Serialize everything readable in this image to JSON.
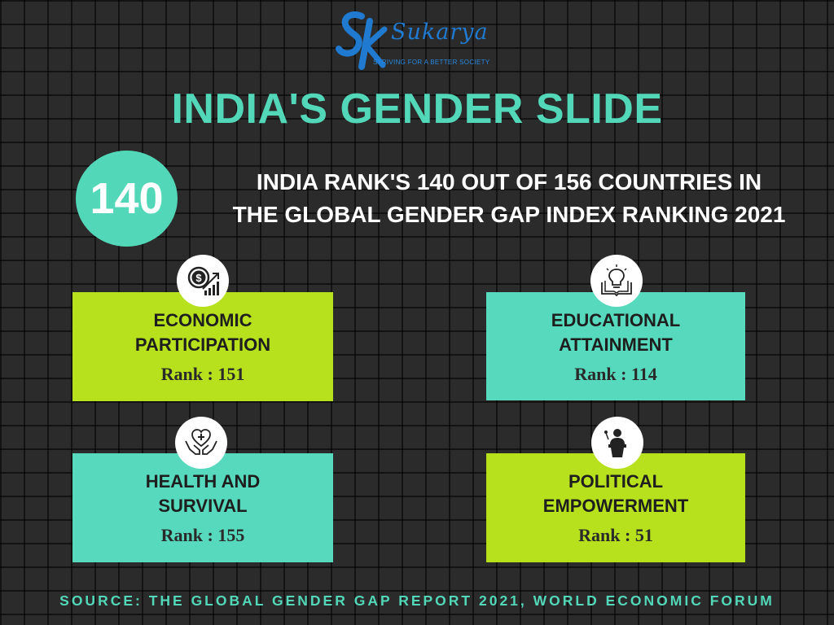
{
  "brand": {
    "name": "Sukarya",
    "tagline": "STRIVING FOR A BETTER SOCIETY",
    "monogram": "SK"
  },
  "title": "INDIA'S GENDER SLIDE",
  "overall_rank": "140",
  "headline": {
    "line1": "INDIA RANK'S 140 OUT OF 156 COUNTRIES IN",
    "line2": "THE GLOBAL GENDER GAP INDEX RANKING 2021"
  },
  "categories": [
    {
      "line1": "ECONOMIC",
      "line2": "PARTICIPATION",
      "rank_text": "Rank : 151",
      "icon": "dollar-growth-icon"
    },
    {
      "line1": "EDUCATIONAL",
      "line2": "ATTAINMENT",
      "rank_text": "Rank : 114",
      "icon": "book-bulb-icon"
    },
    {
      "line1": "HEALTH AND",
      "line2": "SURVIVAL",
      "rank_text": "Rank : 155",
      "icon": "heart-hands-icon"
    },
    {
      "line1": "POLITICAL",
      "line2": "EMPOWERMENT",
      "rank_text": "Rank : 51",
      "icon": "podium-speaker-icon"
    }
  ],
  "colors": {
    "background": "#2b2b2b",
    "teal": "#52d8b8",
    "lime": "#b6e11c",
    "logo_blue": "#1f7ad0"
  },
  "source": "SOURCE: THE GLOBAL GENDER GAP REPORT 2021, WORLD ECONOMIC FORUM"
}
